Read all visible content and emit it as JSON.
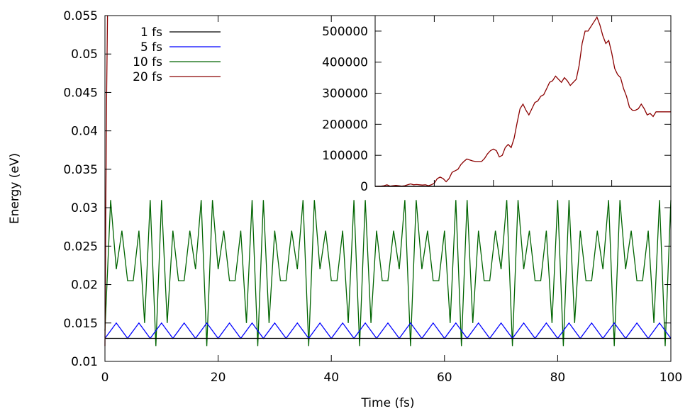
{
  "chart_data": [
    {
      "type": "line",
      "xlabel": "Time (fs)",
      "ylabel": "Energy (eV)",
      "xlim": [
        0,
        100
      ],
      "ylim": [
        0.01,
        0.055
      ],
      "xticks": [
        0,
        20,
        40,
        60,
        80,
        100
      ],
      "xtick_labels": [
        "0",
        "20",
        "40",
        "60",
        "80",
        "100"
      ],
      "yticks": [
        0.01,
        0.015,
        0.02,
        0.025,
        0.03,
        0.035,
        0.04,
        0.045,
        0.05,
        0.055
      ],
      "ytick_labels": [
        "0.01",
        "0.015",
        "0.02",
        "0.025",
        "0.03",
        "0.035",
        "0.04",
        "0.045",
        "0.05",
        "0.055"
      ],
      "grid": false,
      "legend_position": "top-left",
      "series": [
        {
          "name": "1 fs",
          "color": "#000000",
          "x": [
            0,
            10,
            20,
            30,
            40,
            50,
            60,
            70,
            80,
            90,
            100
          ],
          "y": [
            0.013,
            0.013,
            0.013,
            0.013,
            0.013,
            0.013,
            0.013,
            0.013,
            0.013,
            0.013,
            0.013
          ]
        },
        {
          "name": "5 fs",
          "color": "#0000ff",
          "x": [
            0,
            2,
            4,
            6,
            8,
            10,
            12,
            14,
            16,
            18,
            20,
            22,
            24,
            26,
            28,
            30,
            32,
            34,
            36,
            38,
            40,
            42,
            44,
            46,
            48,
            50,
            52,
            54,
            56,
            58,
            60,
            62,
            64,
            66,
            68,
            70,
            72,
            74,
            76,
            78,
            80,
            82,
            84,
            86,
            88,
            90,
            92,
            94,
            96,
            98,
            100
          ],
          "y": [
            0.013,
            0.015,
            0.013,
            0.015,
            0.013,
            0.015,
            0.013,
            0.015,
            0.013,
            0.015,
            0.013,
            0.015,
            0.013,
            0.015,
            0.013,
            0.015,
            0.013,
            0.015,
            0.013,
            0.015,
            0.013,
            0.015,
            0.013,
            0.015,
            0.013,
            0.015,
            0.013,
            0.015,
            0.013,
            0.015,
            0.013,
            0.015,
            0.013,
            0.015,
            0.013,
            0.015,
            0.013,
            0.015,
            0.013,
            0.015,
            0.013,
            0.015,
            0.013,
            0.015,
            0.013,
            0.015,
            0.013,
            0.015,
            0.013,
            0.015,
            0.013
          ]
        },
        {
          "name": "10 fs",
          "color": "#006400",
          "x": [
            0,
            1,
            2,
            3,
            4,
            5,
            6,
            7,
            8,
            9,
            10,
            11,
            12,
            13,
            14,
            15,
            16,
            17,
            18,
            19,
            20,
            21,
            22,
            23,
            24,
            25,
            26,
            27,
            28,
            29,
            30,
            31,
            32,
            33,
            34,
            35,
            36,
            37,
            38,
            39,
            40,
            41,
            42,
            43,
            44,
            45,
            46,
            47,
            48,
            49,
            50,
            51,
            52,
            53,
            54,
            55,
            56,
            57,
            58,
            59,
            60,
            61,
            62,
            63,
            64,
            65,
            66,
            67,
            68,
            69,
            70,
            71,
            72,
            73,
            74,
            75,
            76,
            77,
            78,
            79,
            80,
            81,
            82,
            83,
            84,
            85,
            86,
            87,
            88,
            89,
            90,
            91,
            92,
            93,
            94,
            95,
            96,
            97,
            98,
            99,
            100
          ],
          "y": [
            0.014,
            0.031,
            0.022,
            0.027,
            0.0205,
            0.0205,
            0.027,
            0.015,
            0.031,
            0.012,
            0.031,
            0.015,
            0.027,
            0.0205,
            0.0205,
            0.027,
            0.022,
            0.031,
            0.012,
            0.031,
            0.022,
            0.027,
            0.0205,
            0.0205,
            0.027,
            0.015,
            0.031,
            0.012,
            0.031,
            0.015,
            0.027,
            0.0205,
            0.0205,
            0.027,
            0.022,
            0.031,
            0.012,
            0.031,
            0.022,
            0.027,
            0.0205,
            0.0205,
            0.027,
            0.015,
            0.031,
            0.012,
            0.031,
            0.015,
            0.027,
            0.0205,
            0.0205,
            0.027,
            0.022,
            0.031,
            0.012,
            0.031,
            0.022,
            0.027,
            0.0205,
            0.0205,
            0.027,
            0.015,
            0.031,
            0.012,
            0.031,
            0.015,
            0.027,
            0.0205,
            0.0205,
            0.027,
            0.022,
            0.031,
            0.012,
            0.031,
            0.022,
            0.027,
            0.0205,
            0.0205,
            0.027,
            0.015,
            0.031,
            0.012,
            0.031,
            0.015,
            0.027,
            0.0205,
            0.0205,
            0.027,
            0.022,
            0.031,
            0.012,
            0.031,
            0.022,
            0.027,
            0.0205,
            0.0205,
            0.027,
            0.015,
            0.031,
            0.012,
            0.031
          ]
        },
        {
          "name": "20 fs",
          "color": "#8b0000",
          "x": [
            0,
            0.15,
            0.3,
            0.45
          ],
          "y": [
            0.012,
            0.03,
            0.045,
            0.055
          ]
        }
      ]
    },
    {
      "type": "line",
      "xlabel": "",
      "ylabel": "",
      "xlim": [
        0,
        100
      ],
      "ylim": [
        0,
        550000
      ],
      "yticks": [
        0,
        100000,
        200000,
        300000,
        400000,
        500000
      ],
      "ytick_labels": [
        "0",
        "100000",
        "200000",
        "300000",
        "400000",
        "500000"
      ],
      "xtick_labels": [],
      "grid": false,
      "series": [
        {
          "color": "#8b0000",
          "x": [
            0,
            1,
            2,
            3,
            4,
            5,
            6,
            7,
            8,
            9,
            10,
            11,
            12,
            13,
            14,
            15,
            16,
            17,
            18,
            19,
            20,
            21,
            22,
            23,
            24,
            25,
            26,
            27,
            28,
            29,
            30,
            31,
            32,
            33,
            34,
            35,
            36,
            37,
            38,
            39,
            40,
            41,
            42,
            43,
            44,
            45,
            46,
            47,
            48,
            49,
            50,
            51,
            52,
            53,
            54,
            55,
            56,
            57,
            58,
            59,
            60,
            61,
            62,
            63,
            64,
            65,
            66,
            67,
            68,
            69,
            70,
            71,
            72,
            73,
            74,
            75,
            76,
            77,
            78,
            79,
            80,
            81,
            82,
            83,
            84,
            85,
            86,
            87,
            88,
            89,
            90,
            91,
            92,
            93,
            94,
            95,
            96,
            97,
            98,
            99,
            100
          ],
          "y": [
            0,
            1000,
            1000,
            2000,
            5000,
            1000,
            2000,
            3000,
            2000,
            1000,
            2000,
            5000,
            8000,
            5000,
            6000,
            5000,
            4000,
            5000,
            2000,
            5000,
            10000,
            25000,
            30000,
            25000,
            15000,
            25000,
            45000,
            50000,
            55000,
            70000,
            80000,
            88000,
            85000,
            82000,
            80000,
            80000,
            80000,
            90000,
            105000,
            115000,
            120000,
            115000,
            95000,
            100000,
            125000,
            135000,
            125000,
            155000,
            205000,
            250000,
            265000,
            245000,
            230000,
            250000,
            270000,
            275000,
            290000,
            295000,
            315000,
            335000,
            340000,
            355000,
            345000,
            335000,
            350000,
            340000,
            325000,
            335000,
            345000,
            390000,
            460000,
            500000,
            500000,
            515000,
            530000,
            545000,
            520000,
            485000,
            460000,
            470000,
            430000,
            380000,
            360000,
            350000,
            315000,
            290000,
            255000,
            245000,
            245000,
            250000,
            265000,
            250000,
            230000,
            235000,
            225000,
            240000,
            240000,
            240000,
            240000,
            240000,
            240000
          ]
        },
        {
          "color": "#000000",
          "x": [
            0,
            100
          ],
          "y": [
            0,
            0
          ]
        }
      ]
    }
  ]
}
